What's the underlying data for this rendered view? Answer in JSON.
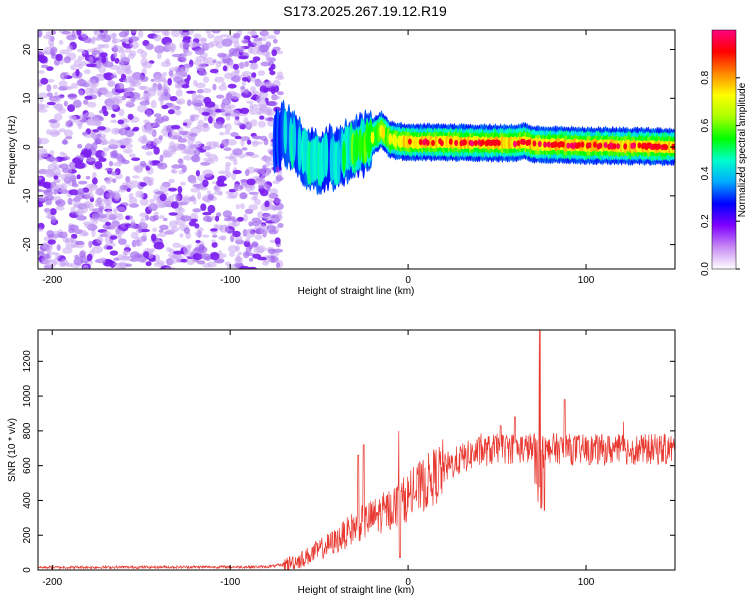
{
  "title": "S173.2025.267.19.12.R19",
  "chart_data": [
    {
      "type": "heatmap",
      "title": "S173.2025.267.19.12.R19",
      "xlabel": "Height of straight line (km)",
      "ylabel": "Frequency (Hz)",
      "xlim": [
        -208,
        150
      ],
      "ylim": [
        -25,
        24
      ],
      "xticks": [
        -200,
        -100,
        0,
        100
      ],
      "yticks": [
        -20,
        -10,
        0,
        10,
        20
      ],
      "colorbar": {
        "label": "Normalized spectral amplitude",
        "range": [
          0,
          1
        ],
        "ticks": [
          0.0,
          0.2,
          0.4,
          0.6,
          0.8
        ],
        "colors": [
          "#ffffff",
          "#c98cf5",
          "#8000ff",
          "#0000ff",
          "#00aaff",
          "#00ffcc",
          "#00ff00",
          "#aaff00",
          "#ffff00",
          "#ff8800",
          "#ff0000",
          "#ff0080"
        ]
      },
      "noise_region": {
        "x_from": -208,
        "x_to": -75,
        "level": 0.15
      },
      "ridge": {
        "x": [
          -75,
          -70,
          -65,
          -60,
          -55,
          -50,
          -45,
          -40,
          -35,
          -30,
          -25,
          -20,
          -15,
          -10,
          -5,
          0,
          10,
          20,
          30,
          40,
          50,
          60,
          65,
          70,
          80,
          90,
          100,
          110,
          120,
          130,
          140,
          150
        ],
        "freq": [
          0.5,
          3,
          1,
          -1,
          -2.5,
          -3,
          -2,
          -2.5,
          -1,
          0,
          0.5,
          2,
          3.5,
          1.5,
          1.2,
          1.0,
          1.0,
          1.0,
          0.9,
          0.9,
          0.8,
          0.8,
          1.2,
          0.6,
          0.5,
          0.4,
          0.3,
          0.3,
          0.2,
          0.2,
          0.1,
          0.1
        ],
        "amplitude": [
          0.3,
          0.35,
          0.45,
          0.4,
          0.45,
          0.45,
          0.4,
          0.4,
          0.5,
          0.55,
          0.6,
          0.65,
          0.7,
          0.75,
          0.8,
          0.85,
          0.85,
          0.85,
          0.9,
          0.95,
          0.95,
          0.9,
          0.85,
          0.85,
          0.9,
          0.9,
          0.9,
          0.95,
          0.9,
          0.9,
          0.9,
          0.9
        ]
      }
    },
    {
      "type": "line",
      "xlabel": "Height of straight line (km)",
      "ylabel": "SNR (10 * v/v)",
      "xlim": [
        -208,
        150
      ],
      "ylim": [
        0,
        1380
      ],
      "xticks": [
        -200,
        -100,
        0,
        100
      ],
      "yticks": [
        0,
        200,
        400,
        600,
        800,
        1000,
        1200
      ],
      "series": [
        {
          "name": "SNR",
          "color": "#e8372f",
          "x": [
            -208,
            -160,
            -120,
            -80,
            -70,
            -60,
            -50,
            -40,
            -30,
            -20,
            -10,
            0,
            10,
            20,
            30,
            40,
            50,
            60,
            70,
            72,
            74,
            76,
            80,
            90,
            100,
            110,
            120,
            130,
            140,
            150
          ],
          "y": [
            15,
            15,
            15,
            20,
            30,
            60,
            120,
            170,
            260,
            310,
            360,
            430,
            510,
            590,
            650,
            690,
            700,
            700,
            710,
            1050,
            1380,
            820,
            760,
            700,
            690,
            690,
            680,
            690,
            690,
            700
          ],
          "peaks": [
            [
              -28,
              660
            ],
            [
              -25,
              720
            ],
            [
              -5,
              800
            ],
            [
              52,
              830
            ],
            [
              60,
              880
            ],
            [
              74,
              1380
            ],
            [
              88,
              980
            ]
          ]
        }
      ]
    }
  ]
}
